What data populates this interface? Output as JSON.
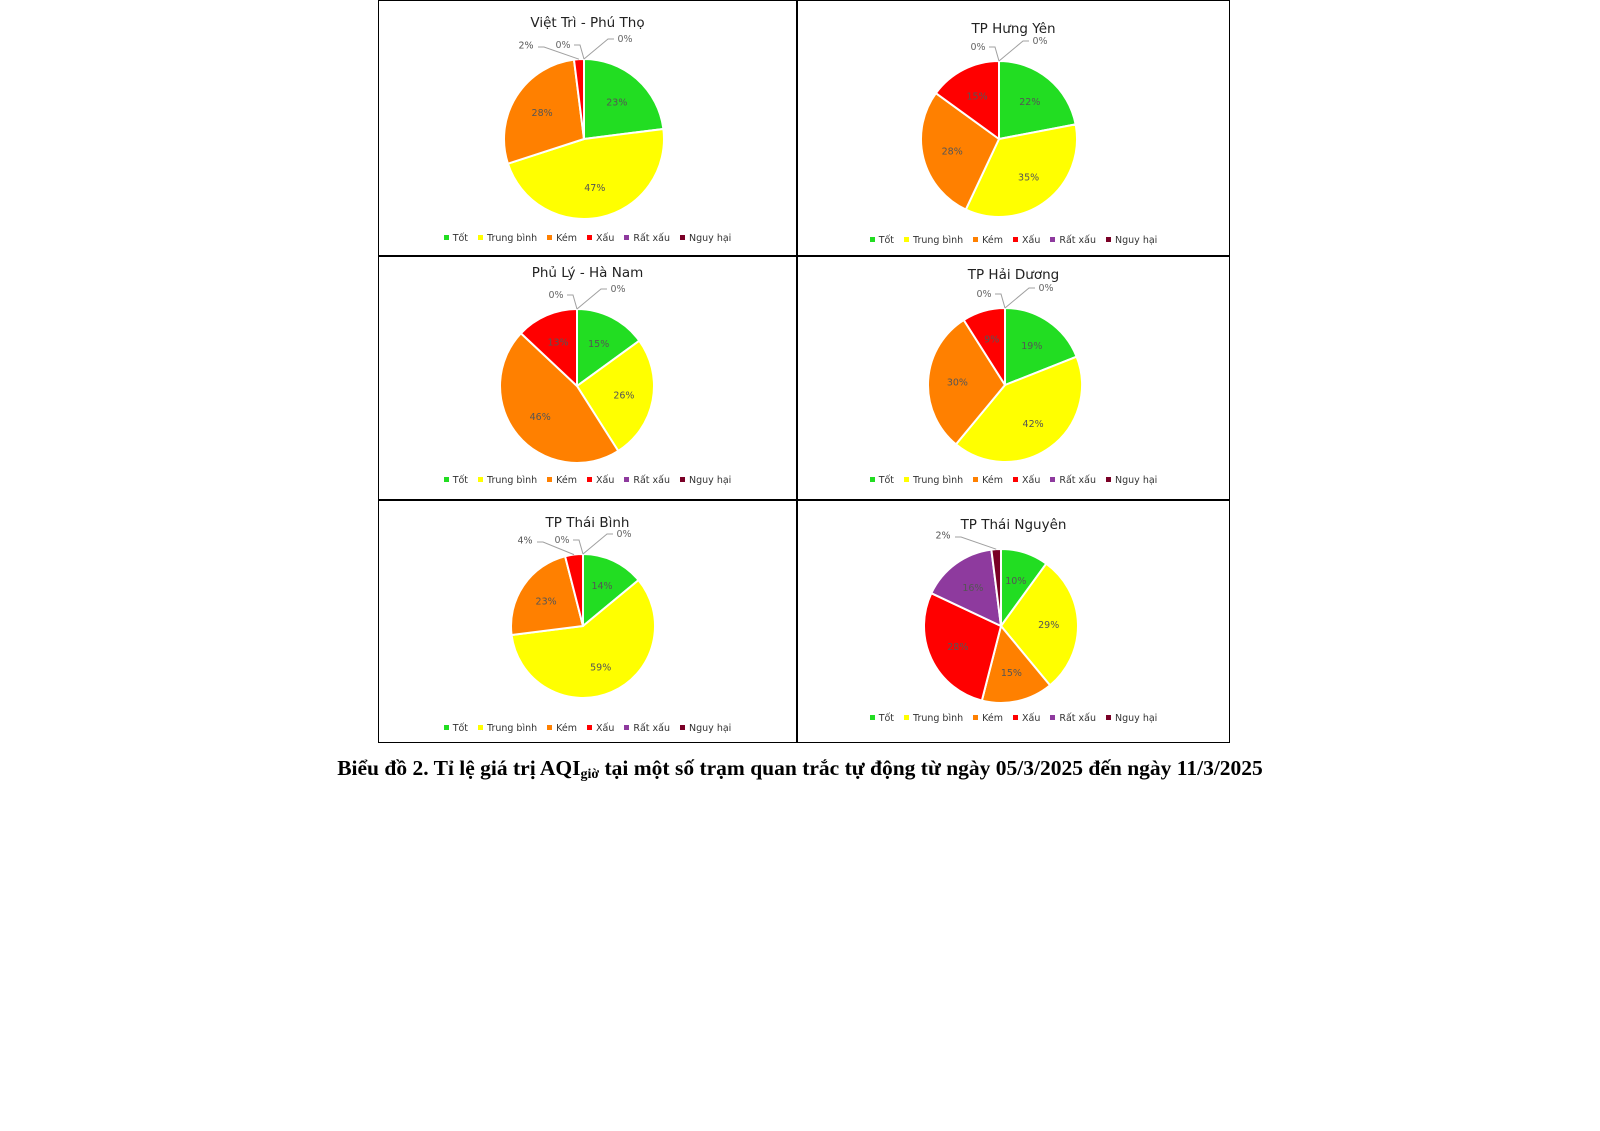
{
  "categories": [
    "Tốt",
    "Trung bình",
    "Kém",
    "Xấu",
    "Rất xấu",
    "Nguy hại"
  ],
  "colors": [
    "#22dd22",
    "#ffff00",
    "#ff8000",
    "#ff0000",
    "#8e3a9e",
    "#7a0026"
  ],
  "caption": {
    "prefix": "Biểu đồ 2.  Tỉ lệ giá trị AQI",
    "subscript": "giờ",
    "suffix": " tại một số trạm quan trắc tự động từ ngày 05/3/2025 đến ngày 11/3/2025"
  },
  "chart_data": [
    {
      "type": "pie",
      "title": "Việt Trì - Phú Thọ",
      "categories": [
        "Tốt",
        "Trung bình",
        "Kém",
        "Xấu",
        "Rất xấu",
        "Nguy hại"
      ],
      "values": [
        23,
        47,
        28,
        2,
        0,
        0
      ],
      "labels": [
        "23%",
        "47%",
        "28%",
        "2%",
        "0%",
        "0%"
      ]
    },
    {
      "type": "pie",
      "title": "TP Hưng Yên",
      "categories": [
        "Tốt",
        "Trung bình",
        "Kém",
        "Xấu",
        "Rất xấu",
        "Nguy hại"
      ],
      "values": [
        22,
        35,
        28,
        15,
        0,
        0
      ],
      "labels": [
        "22%",
        "35%",
        "28%",
        "15%",
        "0%",
        "0%"
      ]
    },
    {
      "type": "pie",
      "title": "Phủ Lý - Hà Nam",
      "categories": [
        "Tốt",
        "Trung bình",
        "Kém",
        "Xấu",
        "Rất xấu",
        "Nguy hại"
      ],
      "values": [
        15,
        26,
        46,
        13,
        0,
        0
      ],
      "labels": [
        "15%",
        "26%",
        "46%",
        "13%",
        "0%",
        "0%"
      ]
    },
    {
      "type": "pie",
      "title": "TP Hải Dương",
      "categories": [
        "Tốt",
        "Trung bình",
        "Kém",
        "Xấu",
        "Rất xấu",
        "Nguy hại"
      ],
      "values": [
        19,
        42,
        30,
        9,
        0,
        0
      ],
      "labels": [
        "19%",
        "42%",
        "30%",
        "9%",
        "0%",
        "0%"
      ]
    },
    {
      "type": "pie",
      "title": "TP Thái Bình",
      "categories": [
        "Tốt",
        "Trung bình",
        "Kém",
        "Xấu",
        "Rất xấu",
        "Nguy hại"
      ],
      "values": [
        14,
        59,
        23,
        4,
        0,
        0
      ],
      "labels": [
        "14%",
        "59%",
        "23%",
        "4%",
        "0%",
        "0%"
      ]
    },
    {
      "type": "pie",
      "title": "TP Thái Nguyên",
      "categories": [
        "Tốt",
        "Trung bình",
        "Kém",
        "Xấu",
        "Rất xấu",
        "Nguy hại"
      ],
      "values": [
        10,
        29,
        15,
        28,
        16,
        2
      ],
      "labels": [
        "10%",
        "29%",
        "15%",
        "28%",
        "16%",
        "2%"
      ]
    }
  ]
}
